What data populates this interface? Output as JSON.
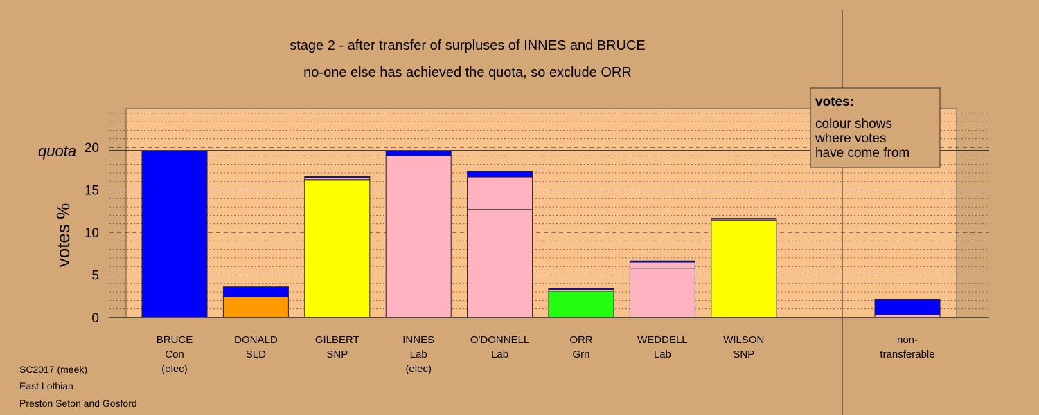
{
  "chart_data": {
    "type": "bar",
    "stacked": true,
    "title": "stage 2 - after transfer of surpluses of INNES and BRUCE",
    "subtitle": "no-one else has achieved the quota, so exclude ORR",
    "ylabel": "votes %",
    "ylim": [
      0,
      25
    ],
    "yticks": [
      0,
      5,
      10,
      15,
      20
    ],
    "quota": 19.6,
    "quota_label": "quota",
    "grid": "dashed horizontal lines",
    "legend": {
      "position": "top-right",
      "title": "votes:",
      "lines": [
        "colour shows",
        "where votes",
        "have come from"
      ]
    },
    "categories": [
      {
        "name": "BRUCE",
        "party": "Con",
        "note": "(elec)",
        "segments": [
          {
            "value": 19.6,
            "color": "#0000ff"
          }
        ]
      },
      {
        "name": "DONALD",
        "party": "SLD",
        "note": "",
        "segments": [
          {
            "value": 2.4,
            "color": "#ff9900"
          },
          {
            "value": 1.2,
            "color": "#0000ff"
          }
        ]
      },
      {
        "name": "GILBERT",
        "party": "SNP",
        "note": "",
        "segments": [
          {
            "value": 16.2,
            "color": "#ffff00"
          },
          {
            "value": 0.2,
            "color": "#ffb3c1"
          },
          {
            "value": 0.15,
            "color": "#0000ff"
          }
        ]
      },
      {
        "name": "INNES",
        "party": "Lab",
        "note": "(elec)",
        "segments": [
          {
            "value": 19.0,
            "color": "#ffb3c1"
          },
          {
            "value": 0.6,
            "color": "#0000ff"
          }
        ]
      },
      {
        "name": "O'DONNELL",
        "party": "Lab",
        "note": "",
        "segments": [
          {
            "value": 12.7,
            "color": "#ffb3c1"
          },
          {
            "value": 3.8,
            "color": "#ffb3c1"
          },
          {
            "value": 0.7,
            "color": "#0000ff"
          }
        ]
      },
      {
        "name": "ORR",
        "party": "Grn",
        "note": "",
        "segments": [
          {
            "value": 3.1,
            "color": "#22ff11"
          },
          {
            "value": 0.2,
            "color": "#ffb3c1"
          },
          {
            "value": 0.15,
            "color": "#0000ff"
          }
        ]
      },
      {
        "name": "WEDDELL",
        "party": "Lab",
        "note": "",
        "segments": [
          {
            "value": 5.8,
            "color": "#ffb3c1"
          },
          {
            "value": 0.7,
            "color": "#ffb3c1"
          },
          {
            "value": 0.15,
            "color": "#0000ff"
          }
        ]
      },
      {
        "name": "WILSON",
        "party": "SNP",
        "note": "",
        "segments": [
          {
            "value": 11.4,
            "color": "#ffff00"
          },
          {
            "value": 0.15,
            "color": "#ffb3c1"
          },
          {
            "value": 0.1,
            "color": "#0000ff"
          }
        ]
      }
    ],
    "nontransferable": {
      "label_line1": "non-",
      "label_line2": "transferable",
      "segments": [
        {
          "value": 0.3,
          "color": "#ffb3c1"
        },
        {
          "value": 1.8,
          "color": "#0000ff"
        }
      ]
    }
  },
  "footer": {
    "line1": "SC2017 (meek)",
    "line2": "East Lothian",
    "line3": "Preston Seton and Gosford"
  },
  "colors": {
    "background": "#d4a876",
    "plot_background": "#f9c28b",
    "legend_background": "#d4a876"
  }
}
